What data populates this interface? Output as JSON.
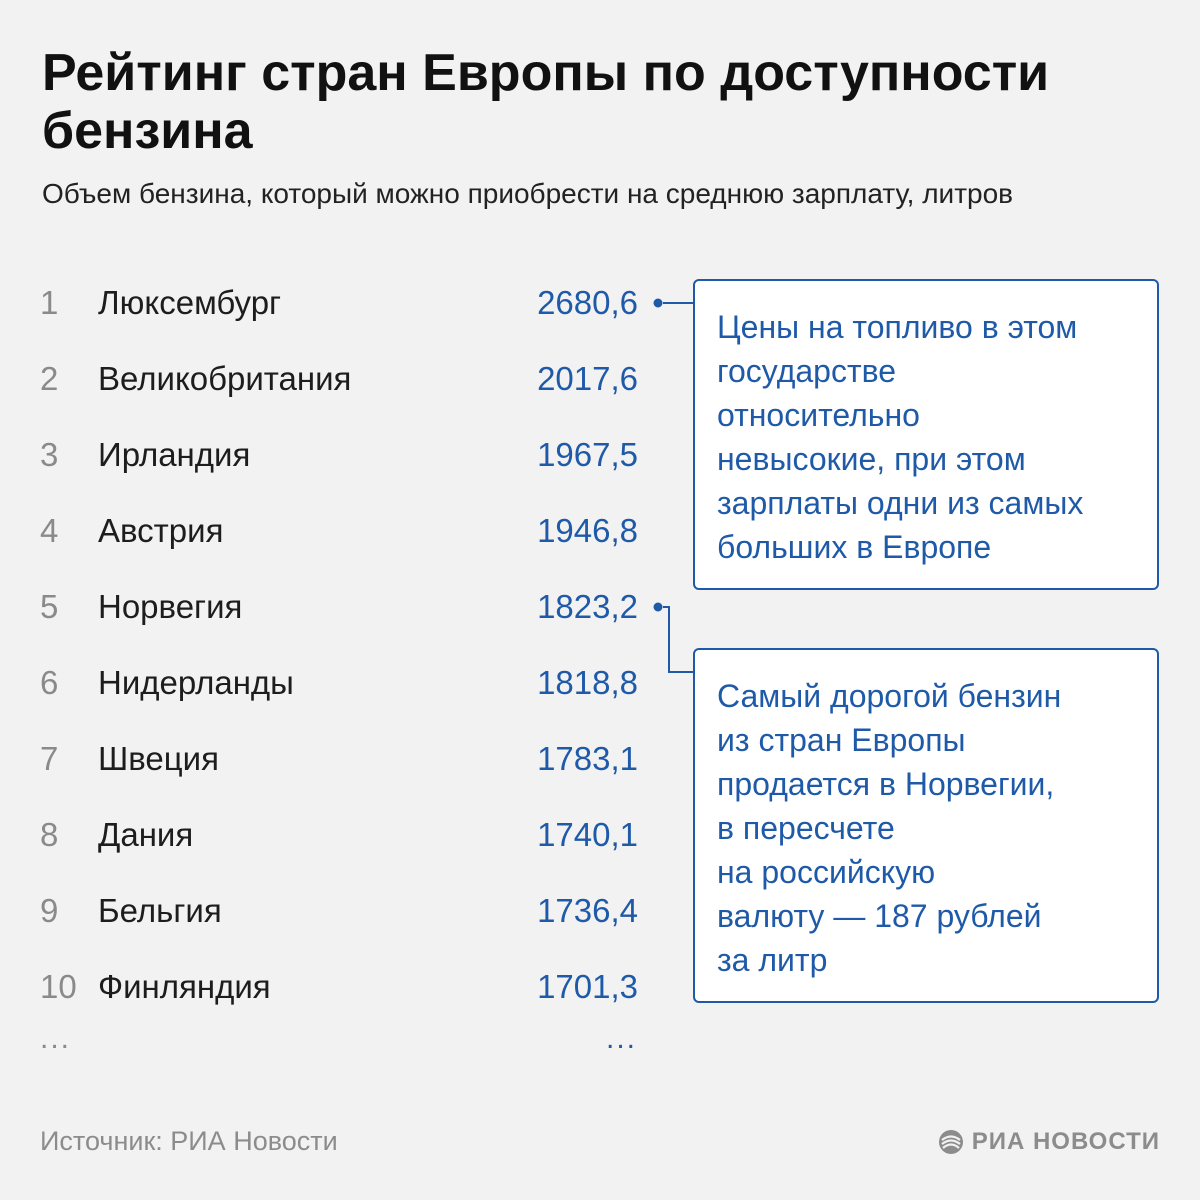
{
  "header": {
    "title": "Рейтинг стран Европы по доступности бензина",
    "subtitle": "Объем бензина, который можно приобрести на среднюю зарплату, литров"
  },
  "chart_data": {
    "type": "table",
    "title": "Рейтинг стран Европы по доступности бензина",
    "subtitle": "Объем бензина, который можно приобрести на среднюю зарплату, литров",
    "rows": [
      {
        "rank": "1",
        "country": "Люксембург",
        "value": "2680,6"
      },
      {
        "rank": "2",
        "country": "Великобритания",
        "value": "2017,6"
      },
      {
        "rank": "3",
        "country": "Ирландия",
        "value": "1967,5"
      },
      {
        "rank": "4",
        "country": "Австрия",
        "value": "1946,8"
      },
      {
        "rank": "5",
        "country": "Норвегия",
        "value": "1823,2"
      },
      {
        "rank": "6",
        "country": "Нидерланды",
        "value": "1818,8"
      },
      {
        "rank": "7",
        "country": "Швеция",
        "value": "1783,1"
      },
      {
        "rank": "8",
        "country": "Дания",
        "value": "1740,1"
      },
      {
        "rank": "9",
        "country": "Бельгия",
        "value": "1736,4"
      },
      {
        "rank": "10",
        "country": "Финляндия",
        "value": "1701,3"
      }
    ],
    "ellipsis_rank": "...",
    "ellipsis_value": "...",
    "annotations": [
      {
        "target_rank": "1",
        "text_lines": [
          "Цены на топливо в этом",
          "государстве",
          "относительно",
          "невысокие, при этом",
          "зарплаты одни из самых",
          "больших в Европе"
        ]
      },
      {
        "target_rank": "5",
        "text_lines": [
          "Самый дорогой бензин",
          "из стран Европы",
          "продается в Норвегии,",
          "в пересчете",
          "на российскую",
          "валюту — 187 рублей",
          "за литр"
        ]
      }
    ]
  },
  "footer": {
    "source": "Источник: РИА Новости",
    "logo_text": "РИА НОВОСТИ"
  },
  "colors": {
    "accent": "#1f5aa8",
    "background": "#f2f2f3"
  }
}
